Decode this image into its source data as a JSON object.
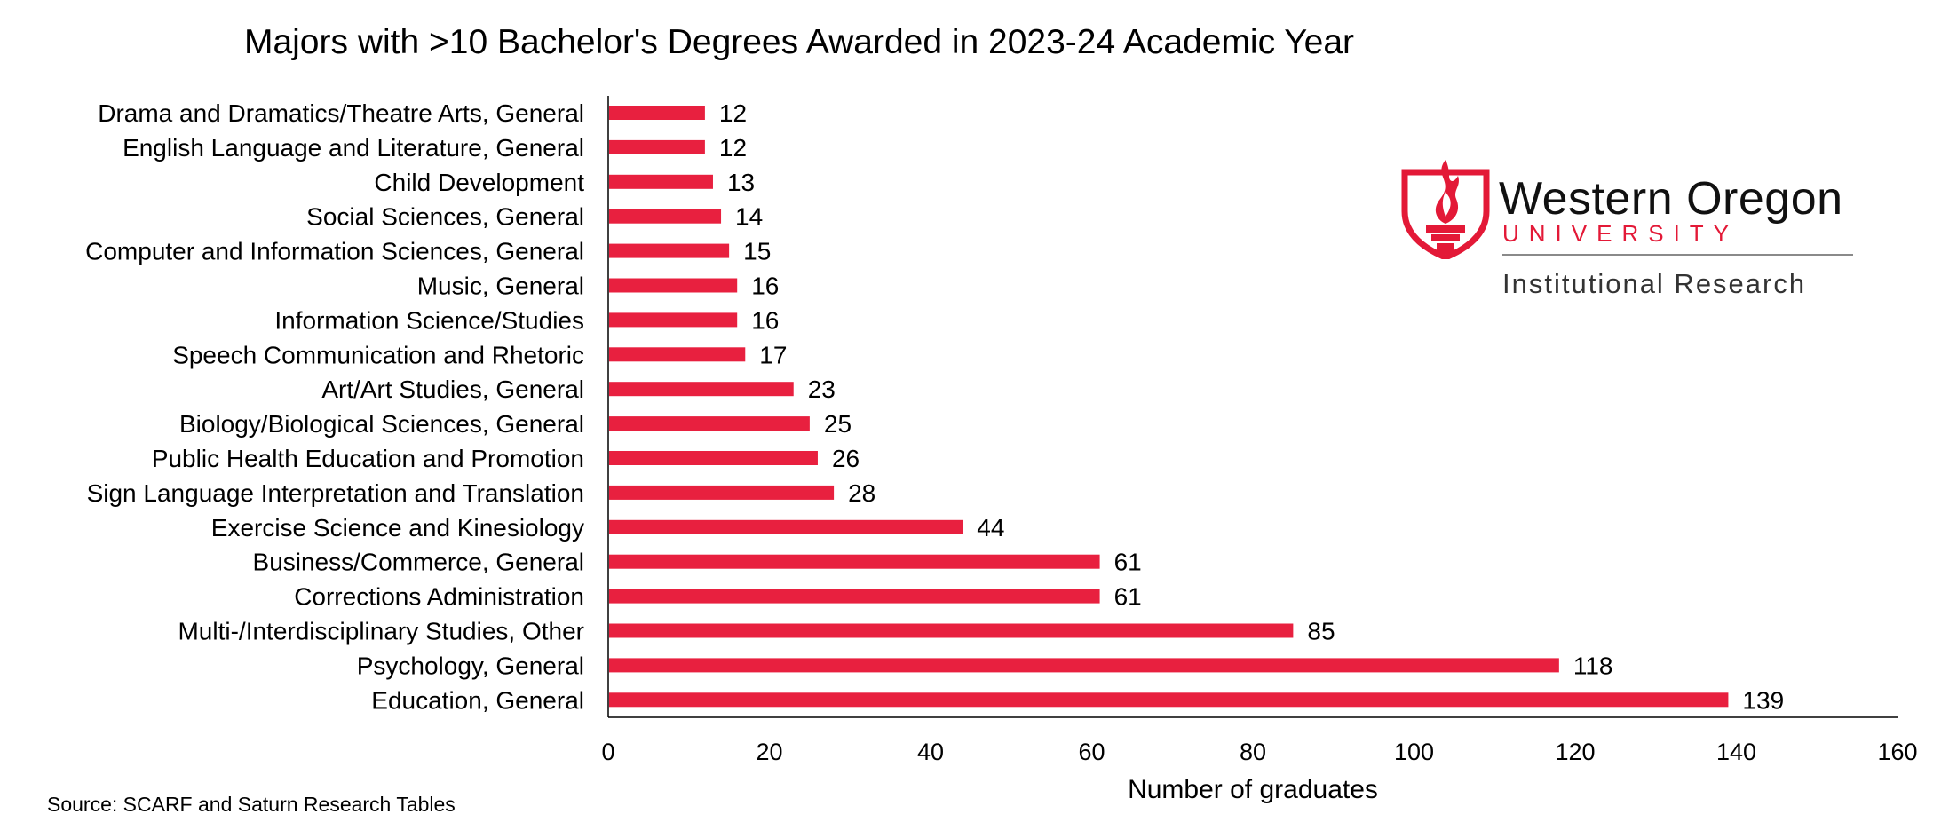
{
  "chart_data": {
    "type": "bar",
    "orientation": "horizontal",
    "title": "Majors with >10 Bachelor's Degrees Awarded in 2023-24 Academic Year",
    "xlabel": "Number of graduates",
    "ylabel": "",
    "xlim": [
      0,
      160
    ],
    "xticks": [
      "0",
      "20",
      "40",
      "60",
      "80",
      "100",
      "120",
      "140",
      "160"
    ],
    "grid": false,
    "bar_color": "#e8203f",
    "categories": [
      "Drama and Dramatics/Theatre Arts, General",
      "English Language and Literature, General",
      "Child Development",
      "Social Sciences, General",
      "Computer and Information Sciences, General",
      "Music, General",
      "Information Science/Studies",
      "Speech Communication and Rhetoric",
      "Art/Art Studies, General",
      "Biology/Biological Sciences, General",
      "Public Health Education and Promotion",
      "Sign Language Interpretation and Translation",
      "Exercise Science and Kinesiology",
      "Business/Commerce, General",
      "Corrections Administration",
      "Multi-/Interdisciplinary Studies, Other",
      "Psychology, General",
      "Education, General"
    ],
    "values": [
      12,
      12,
      13,
      14,
      15,
      16,
      16,
      17,
      23,
      25,
      26,
      28,
      44,
      61,
      61,
      85,
      118,
      139
    ]
  },
  "source_note": "Source: SCARF and Saturn Research Tables",
  "logo": {
    "name": "Western Oregon",
    "subtitle": "UNIVERSITY",
    "department": "Institutional Research",
    "icon": "torch-shield-icon",
    "accent_color": "#e31937"
  }
}
